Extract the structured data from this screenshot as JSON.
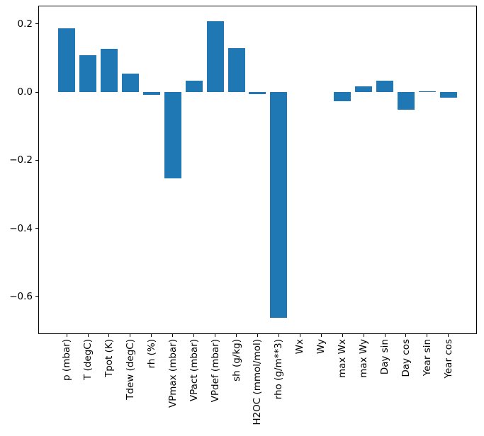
{
  "chart_data": {
    "type": "bar",
    "title": "",
    "xlabel": "",
    "ylabel": "",
    "grid": false,
    "legend": null,
    "bar_color": "#1f77b4",
    "axis_color": "#000000",
    "x_tick_rotation": 90,
    "ylim": [
      -0.711,
      0.253
    ],
    "yticks": [
      0.2,
      0.0,
      -0.2,
      -0.4,
      -0.6
    ],
    "ytick_labels": [
      "0.2",
      "0.0",
      "−0.2",
      "−0.4",
      "−0.6"
    ],
    "categories": [
      "p (mbar)",
      "T (degC)",
      "Tpot (K)",
      "Tdew (degC)",
      "rh (%)",
      "VPmax (mbar)",
      "VPact (mbar)",
      "VPdef (mbar)",
      "sh (g/kg)",
      "H2OC (mmol/mol)",
      "rho (g/m**3)",
      "Wx",
      "Wy",
      "max Wx",
      "max Wy",
      "Day sin",
      "Day cos",
      "Year sin",
      "Year cos"
    ],
    "values": [
      0.187,
      0.108,
      0.126,
      0.054,
      -0.008,
      -0.254,
      0.034,
      0.207,
      0.128,
      -0.006,
      -0.662,
      0.0,
      0.0,
      -0.026,
      0.017,
      0.033,
      -0.052,
      0.002,
      -0.017
    ]
  }
}
